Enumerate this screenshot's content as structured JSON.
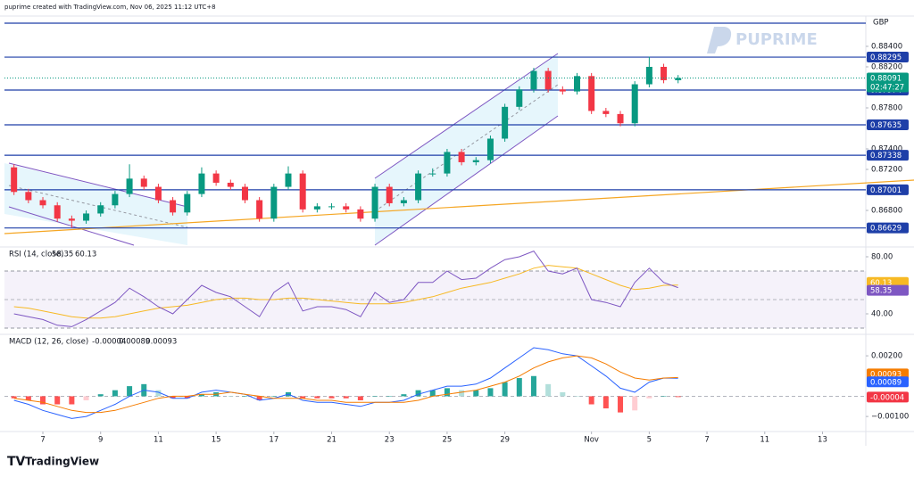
{
  "header": "puprime created with TradingView.com, Nov 06, 2025 11:12 UTC+8",
  "watermark": "PUPRIME",
  "brand": "TradingView",
  "chart_data": [
    {
      "type": "candlestick",
      "currency": "GBP",
      "up_color": "#089981",
      "down_color": "#f23645",
      "level_color": "#1e3fa8",
      "price_color": "#089981",
      "x": [
        -1,
        -0.5,
        0,
        0.5,
        1,
        1.5,
        2,
        2.5,
        3,
        3.5,
        4,
        4.5,
        5,
        5.5,
        6,
        6.5,
        7,
        7.5,
        8,
        8.5,
        9,
        9.5,
        10,
        10.5,
        11,
        11.5,
        12,
        12.5,
        13,
        13.5,
        14,
        14.5,
        15,
        15.5,
        16,
        16.5,
        17,
        17.5,
        18,
        18.5,
        19,
        19.5,
        20,
        20.5,
        21,
        21.5,
        22
      ],
      "open": [
        0.8722,
        0.8698,
        0.869,
        0.8685,
        0.8672,
        0.867,
        0.8677,
        0.8685,
        0.8696,
        0.8711,
        0.8703,
        0.869,
        0.8678,
        0.8696,
        0.8716,
        0.8707,
        0.8703,
        0.869,
        0.8672,
        0.8703,
        0.8716,
        0.8681,
        0.8684,
        0.8684,
        0.8681,
        0.8672,
        0.8703,
        0.8687,
        0.869,
        0.8716,
        0.8716,
        0.8737,
        0.8727,
        0.8729,
        0.875,
        0.8781,
        0.8798,
        0.8816,
        0.8798,
        0.8796,
        0.8811,
        0.8777,
        0.8774,
        0.8765,
        0.8803,
        0.882,
        0.8807
      ],
      "high": [
        0.8725,
        0.8701,
        0.8693,
        0.8688,
        0.8675,
        0.868,
        0.8688,
        0.8699,
        0.8725,
        0.8714,
        0.8706,
        0.8693,
        0.8699,
        0.8722,
        0.8719,
        0.871,
        0.8706,
        0.8693,
        0.8706,
        0.8723,
        0.8719,
        0.8687,
        0.8687,
        0.8687,
        0.8684,
        0.8706,
        0.8706,
        0.8693,
        0.8719,
        0.8721,
        0.874,
        0.874,
        0.8732,
        0.8753,
        0.8784,
        0.8801,
        0.8819,
        0.8819,
        0.8801,
        0.8814,
        0.8814,
        0.878,
        0.8777,
        0.8806,
        0.883,
        0.8823,
        0.8812
      ],
      "low": [
        0.8695,
        0.8687,
        0.8682,
        0.8669,
        0.8663,
        0.8667,
        0.8674,
        0.8682,
        0.8693,
        0.87,
        0.8687,
        0.8675,
        0.8675,
        0.8693,
        0.8704,
        0.87,
        0.8687,
        0.8669,
        0.8669,
        0.87,
        0.8678,
        0.8678,
        0.8681,
        0.8678,
        0.8669,
        0.8669,
        0.8684,
        0.8684,
        0.8687,
        0.8713,
        0.8713,
        0.8724,
        0.8724,
        0.8726,
        0.8747,
        0.8778,
        0.8795,
        0.8795,
        0.8793,
        0.8793,
        0.8774,
        0.8771,
        0.8762,
        0.8762,
        0.88,
        0.8804,
        0.8804
      ],
      "close": [
        0.8698,
        0.869,
        0.8685,
        0.8672,
        0.867,
        0.8677,
        0.8685,
        0.8696,
        0.8711,
        0.8703,
        0.869,
        0.8678,
        0.8696,
        0.8716,
        0.8707,
        0.8703,
        0.869,
        0.8672,
        0.8703,
        0.8716,
        0.8681,
        0.8684,
        0.8684,
        0.8681,
        0.8672,
        0.8703,
        0.8687,
        0.869,
        0.8716,
        0.8716,
        0.8737,
        0.8727,
        0.8729,
        0.875,
        0.8781,
        0.8798,
        0.8816,
        0.8798,
        0.8796,
        0.8811,
        0.8777,
        0.8774,
        0.8765,
        0.8803,
        0.882,
        0.8807,
        0.88091
      ],
      "countdown": "02:47:27",
      "xlim": [
        -1.33,
        28.5
      ],
      "xticks": [
        {
          "value": 0,
          "label": "7"
        },
        {
          "value": 2,
          "label": "9"
        },
        {
          "value": 4,
          "label": "11"
        },
        {
          "value": 6,
          "label": "15"
        },
        {
          "value": 8,
          "label": "17"
        },
        {
          "value": 10,
          "label": "21"
        },
        {
          "value": 12,
          "label": "23"
        },
        {
          "value": 14,
          "label": "25"
        },
        {
          "value": 16,
          "label": "29"
        },
        {
          "value": 19,
          "label": "Nov"
        },
        {
          "value": 21,
          "label": "5"
        },
        {
          "value": 23,
          "label": "7"
        },
        {
          "value": 25,
          "label": "11"
        },
        {
          "value": 27,
          "label": "13"
        }
      ],
      "ylim": [
        0.86461,
        0.88678
      ],
      "yticks": [
        {
          "value": 0.884,
          "label": "0.88400"
        },
        {
          "value": 0.882,
          "label": "0.88200"
        },
        {
          "value": 0.878,
          "label": "0.87800"
        },
        {
          "value": 0.874,
          "label": "0.87400"
        },
        {
          "value": 0.872,
          "label": "0.87200"
        },
        {
          "value": 0.868,
          "label": "0.86800"
        }
      ],
      "levels": [
        0.88295,
        0.87974,
        0.87635,
        0.87338,
        0.87001,
        0.86629
      ]
    },
    {
      "type": "line",
      "title": "RSI (14, close)",
      "x": [
        -1,
        -0.5,
        0,
        0.5,
        1,
        1.5,
        2,
        2.5,
        3,
        3.5,
        4,
        4.5,
        5,
        5.5,
        6,
        6.5,
        7,
        7.5,
        8,
        8.5,
        9,
        9.5,
        10,
        10.5,
        11,
        11.5,
        12,
        12.5,
        13,
        13.5,
        14,
        14.5,
        15,
        15.5,
        16,
        16.5,
        17,
        17.5,
        18,
        18.5,
        19,
        19.5,
        20,
        20.5,
        21,
        21.5,
        22
      ],
      "xlim": [
        -1.33,
        28.5
      ],
      "ylim": [
        27.5,
        85
      ],
      "bands": [
        30,
        70
      ],
      "yticks": [
        {
          "value": 80,
          "label": "80.00"
        },
        {
          "value": 40,
          "label": "40.00"
        }
      ],
      "series": [
        {
          "color": "#7e57c2",
          "values": [
            40,
            38,
            36,
            32,
            31,
            36,
            42,
            48,
            58,
            52,
            45,
            40,
            50,
            60,
            55,
            52,
            45,
            38,
            55,
            62,
            42,
            45,
            45,
            43,
            38,
            55,
            48,
            50,
            62,
            62,
            70,
            64,
            65,
            72,
            78,
            80,
            84,
            70,
            68,
            72,
            50,
            48,
            45,
            62,
            72,
            62,
            58.35
          ]
        },
        {
          "color": "#f7b924",
          "values": [
            45,
            44,
            42,
            40,
            38,
            37,
            37,
            38,
            40,
            42,
            44,
            45,
            46,
            48,
            50,
            51,
            51,
            50,
            50,
            51,
            51,
            50,
            49,
            48,
            47,
            47,
            47,
            48,
            50,
            52,
            55,
            58,
            60,
            62,
            65,
            68,
            72,
            74,
            73,
            72,
            68,
            64,
            60,
            57,
            58,
            60,
            60.13
          ]
        }
      ]
    },
    {
      "type": "macd",
      "title": "MACD (12, 26, close)",
      "x": [
        -1,
        -0.5,
        0,
        0.5,
        1,
        1.5,
        2,
        2.5,
        3,
        3.5,
        4,
        4.5,
        5,
        5.5,
        6,
        6.5,
        7,
        7.5,
        8,
        8.5,
        9,
        9.5,
        10,
        10.5,
        11,
        11.5,
        12,
        12.5,
        13,
        13.5,
        14,
        14.5,
        15,
        15.5,
        16,
        16.5,
        17,
        17.5,
        18,
        18.5,
        19,
        19.5,
        20,
        20.5,
        21,
        21.5,
        22
      ],
      "xlim": [
        -1.33,
        28.5
      ],
      "ylim": [
        -0.0017,
        0.00293
      ],
      "yticks": [
        {
          "value": 0.002,
          "label": "0.00200"
        },
        {
          "value": -0.001,
          "label": "−0.00100"
        }
      ],
      "hist_colors": [
        "#26a69a",
        "#b2dfdb",
        "#ff5252",
        "#ffcdd2"
      ],
      "series": [
        {
          "kind": "histogram",
          "color": "#f23645",
          "values": [
            -0.0001,
            -0.0002,
            -0.0004,
            -0.0004,
            -0.0004,
            -0.0002,
            0.0001,
            0.0003,
            0.0005,
            0.0006,
            0.0003,
            -0.0001,
            -0.0001,
            0.0001,
            0.0002,
            0,
            0,
            -0.0002,
            0,
            0.0002,
            -0.0001,
            -0.0001,
            -0.0001,
            -0.0001,
            -0.0002,
            0,
            0,
            0.0001,
            0.0003,
            0.0003,
            0.0004,
            0.0003,
            0.0003,
            0.0004,
            0.0007,
            0.0009,
            0.001,
            0.0006,
            0.0002,
            0,
            -0.0004,
            -0.0006,
            -0.0008,
            -0.0007,
            -0.0001,
            0,
            -4e-05
          ]
        },
        {
          "kind": "line",
          "color": "#2962ff",
          "values": [
            -0.0002,
            -0.0004,
            -0.0007,
            -0.0009,
            -0.0011,
            -0.001,
            -0.0007,
            -0.0004,
            0,
            0.0003,
            0.0002,
            -0.0001,
            -0.0001,
            0.0002,
            0.0003,
            0.0002,
            0.0001,
            -0.0002,
            -0.0001,
            0.0001,
            -0.0002,
            -0.0003,
            -0.0003,
            -0.0004,
            -0.0005,
            -0.0003,
            -0.0003,
            -0.0002,
            0.0001,
            0.0003,
            0.0005,
            0.0005,
            0.0006,
            0.0009,
            0.0014,
            0.0019,
            0.0024,
            0.0023,
            0.0021,
            0.002,
            0.0015,
            0.001,
            0.0004,
            0.0002,
            0.0007,
            0.0009,
            0.00089
          ]
        },
        {
          "kind": "line",
          "color": "#f57c00",
          "values": [
            -0.0001,
            -0.0002,
            -0.0003,
            -0.0005,
            -0.0007,
            -0.0008,
            -0.0008,
            -0.0007,
            -0.0005,
            -0.0003,
            -0.0001,
            0,
            0,
            0.0001,
            0.0001,
            0.0002,
            0.0001,
            0,
            -0.0001,
            -0.0001,
            -0.0001,
            -0.0002,
            -0.0002,
            -0.0003,
            -0.0003,
            -0.0003,
            -0.0003,
            -0.0003,
            -0.0002,
            0,
            0.0001,
            0.0002,
            0.0003,
            0.0005,
            0.0007,
            0.001,
            0.0014,
            0.0017,
            0.0019,
            0.002,
            0.0019,
            0.0016,
            0.0012,
            0.0009,
            0.0008,
            0.0009,
            0.00093
          ]
        }
      ]
    }
  ]
}
